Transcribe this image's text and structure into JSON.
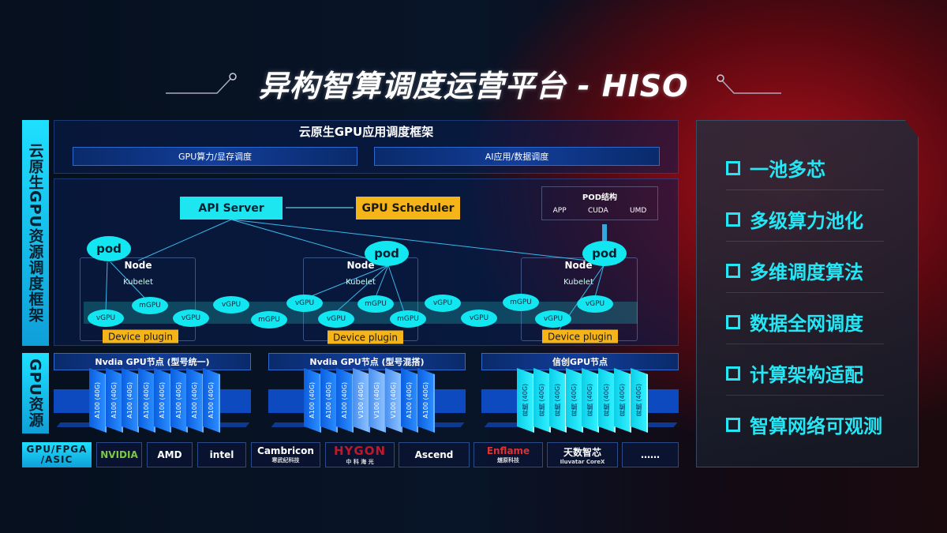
{
  "title": "异构智算调度运营平台 - HISO",
  "left_labels": {
    "scheduling": "云原生GPU资源调度框架",
    "resources": "GPU资源",
    "chips": "GPU/FPGA /ASIC"
  },
  "framework": {
    "title": "云原生GPU应用调度框架",
    "boxes": [
      "GPU算力/显存调度",
      "AI应用/数据调度"
    ]
  },
  "diagram": {
    "api_server": "API Server",
    "gpu_scheduler": "GPU Scheduler",
    "pod_structure": {
      "title": "POD结构",
      "items": [
        "APP",
        "CUDA",
        "UMD"
      ]
    },
    "pod": "pod",
    "node": "Node",
    "kubelet": "Kubelet",
    "device_plugin": "Device plugin",
    "units": [
      "vGPU",
      "mGPU",
      "vGPU",
      "vGPU",
      "mGPU",
      "vGPU",
      "vGPU",
      "mGPU",
      "mGPU",
      "vGPU",
      "vGPU",
      "mGPU",
      "vGPU",
      "vGPU"
    ]
  },
  "gpu_nodes": [
    {
      "title": "Nvdia GPU节点 (型号统一)",
      "cards": [
        "A100 (40G)",
        "A100 (40G)",
        "A100 (40G)",
        "A100 (40G)",
        "A100 (40G)",
        "A100 (40G)",
        "A100 (40G)",
        "A100 (40G)"
      ]
    },
    {
      "title": "Nvdia GPU节点 (型号混搭)",
      "cards": [
        "A100 (40G)",
        "A100 (40G)",
        "A100 (40G)",
        "V100 (40G)",
        "V100 (40G)",
        "V100 (40G)",
        "A100 (40G)",
        "A100 (40G)"
      ]
    },
    {
      "title": "信创GPU节点",
      "cards": [
        "昇腾 (40G)",
        "昇腾 (40G)",
        "昇腾 (40G)",
        "昇腾 (40G)",
        "昇腾 (40G)",
        "昇腾 (40G)",
        "昇腾 (40G)",
        "昇腾 (40G)"
      ]
    }
  ],
  "vendors": [
    {
      "name": "NVIDIA",
      "sub": ""
    },
    {
      "name": "AMD",
      "sub": ""
    },
    {
      "name": "intel",
      "sub": ""
    },
    {
      "name": "Cambricon",
      "sub": "寒武纪科技"
    },
    {
      "name": "HYGON",
      "sub": "中 科 海 光"
    },
    {
      "name": "Ascend",
      "sub": ""
    },
    {
      "name": "Enflame",
      "sub": "燧原科技"
    },
    {
      "name": "天数智芯",
      "sub": "Iluvatar CoreX"
    },
    {
      "name": "……",
      "sub": ""
    }
  ],
  "features": [
    "一池多芯",
    "多级算力池化",
    "多维调度算法",
    "数据全网调度",
    "计算架构适配",
    "智算网络可观测"
  ],
  "colors": {
    "accent_cyan": "#25e6f4",
    "scheduler_orange": "#f5b417",
    "gpu_blue": "#0b5fe0",
    "hygon_red": "#c0182a"
  }
}
